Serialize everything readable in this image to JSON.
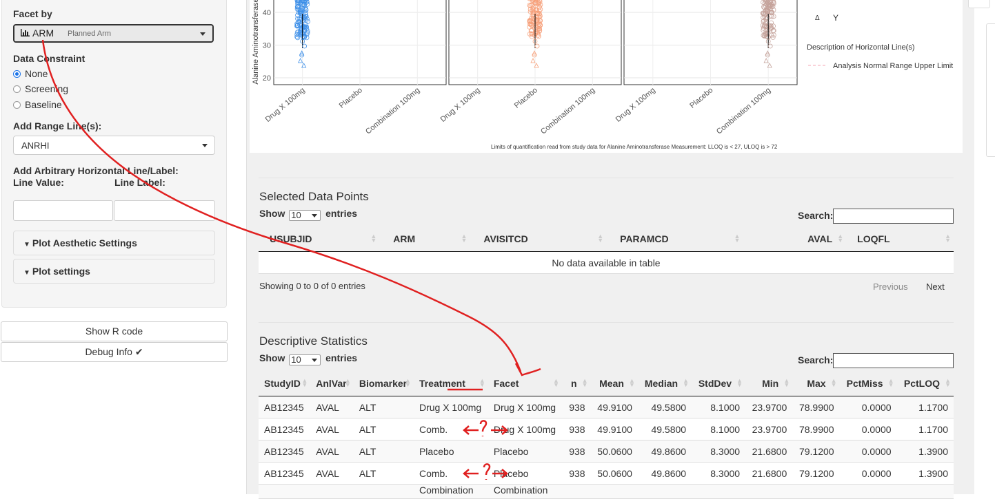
{
  "sidebar": {
    "facet_label": "Facet by",
    "facet_value": "ARM",
    "facet_subtext": "Planned Arm",
    "facet_icon": "bar-chart-icon",
    "constraint_label": "Data Constraint",
    "constraint_options": [
      "None",
      "Screening",
      "Baseline"
    ],
    "constraint_selected": "None",
    "range_label": "Add Range Line(s):",
    "range_value": "ANRHI",
    "arbitrary_label": "Add Arbitrary Horizontal Line/Label:",
    "line_value_label": "Line Value:",
    "line_label_label": "Line Label:",
    "aesthetic_label": "Plot Aesthetic Settings",
    "plot_settings_label": "Plot settings",
    "show_r_code": "Show R code",
    "debug_info": "Debug Info ✔"
  },
  "plot": {
    "ylabel": "Alanine Aminotransferase",
    "yticks": [
      "40",
      "30",
      "20"
    ],
    "xticks": [
      "Drug X 100mg",
      "Placebo",
      "Combination 100mg"
    ],
    "panel_colors": [
      "#3d8fe8",
      "#f6a07a",
      "#c4a29a"
    ],
    "panel_centers": [
      0,
      1,
      2
    ],
    "legend_symbol": "Δ",
    "legend_symbol_label": "Y",
    "legend_hline_title": "Description of Horizontal Line(s)",
    "legend_hline_item": "Analysis Normal Range Upper Limit",
    "footnote": "Limits of quantification read from study data for Alanine Aminotransferase Measurement: LLOQ is < 27, ULOQ is > 72"
  },
  "selected": {
    "title": "Selected Data Points",
    "show_label": "Show",
    "entries_value": "10",
    "entries_label": "entries",
    "search_label": "Search:",
    "columns": [
      "USUBJID",
      "ARM",
      "AVISITCD",
      "PARAMCD",
      "AVAL",
      "LOQFL"
    ],
    "empty_text": "No data available in table",
    "info": "Showing 0 to 0 of 0 entries",
    "prev": "Previous",
    "next": "Next"
  },
  "stats": {
    "title": "Descriptive Statistics",
    "show_label": "Show",
    "entries_value": "10",
    "entries_label": "entries",
    "search_label": "Search:",
    "columns": [
      "StudyID",
      "AnlVar",
      "Biomarker",
      "Treatment",
      "Facet",
      "n",
      "Mean",
      "Median",
      "StdDev",
      "Min",
      "Max",
      "PctMiss",
      "PctLOQ"
    ],
    "rows": [
      [
        "AB12345",
        "AVAL",
        "ALT",
        "Drug X 100mg",
        "Drug X 100mg",
        "938",
        "49.9100",
        "49.5800",
        "8.1000",
        "23.9700",
        "78.9900",
        "0.0000",
        "1.1700"
      ],
      [
        "AB12345",
        "AVAL",
        "ALT",
        "Comb.",
        "Drug X 100mg",
        "938",
        "49.9100",
        "49.5800",
        "8.1000",
        "23.9700",
        "78.9900",
        "0.0000",
        "1.1700"
      ],
      [
        "AB12345",
        "AVAL",
        "ALT",
        "Placebo",
        "Placebo",
        "938",
        "50.0600",
        "49.8600",
        "8.3000",
        "21.6800",
        "79.1200",
        "0.0000",
        "1.3900"
      ],
      [
        "AB12345",
        "AVAL",
        "ALT",
        "Comb.",
        "Placebo",
        "938",
        "50.0600",
        "49.8600",
        "8.3000",
        "21.6800",
        "79.1200",
        "0.0000",
        "1.3900"
      ],
      [
        "",
        "",
        "",
        "Combination",
        "Combination",
        "",
        "",
        "",
        "",
        "",
        "",
        "",
        ""
      ]
    ]
  }
}
